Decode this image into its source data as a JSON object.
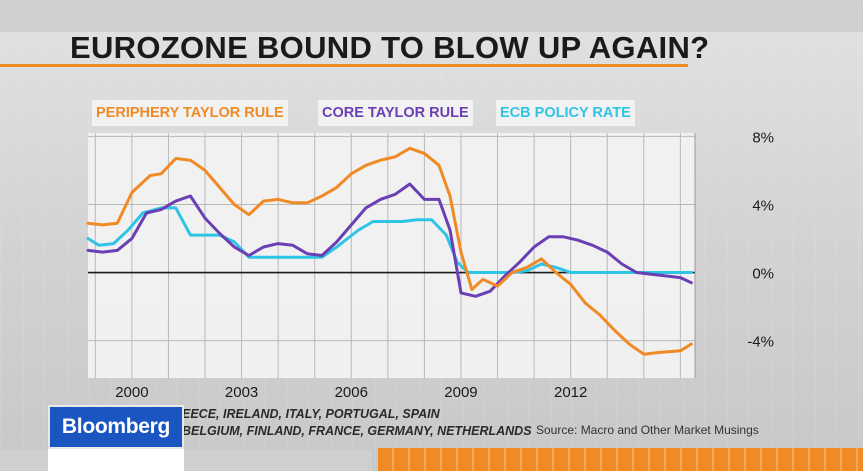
{
  "title": "EUROZONE BOUND TO BLOW UP AGAIN?",
  "brand": "Bloomberg",
  "source": "Source: Macro and Other Market Musings",
  "notes": [
    "EECE, IRELAND, ITALY, PORTUGAL, SPAIN",
    "BELGIUM, FINLAND, FRANCE, GERMANY, NETHERLANDS"
  ],
  "colors": {
    "periphery": "#f08a24",
    "core": "#6a3fb4",
    "ecb": "#2ec4e6",
    "accent": "#f08a24",
    "brand_bg": "#1a55c2"
  },
  "chart_data": {
    "type": "line",
    "x_label_ticks": [
      2000,
      2003,
      2006,
      2009,
      2012
    ],
    "y_ticks": [
      8,
      4,
      0,
      -4
    ],
    "y_tick_labels": [
      "8%",
      "4%",
      "0%",
      "-4%"
    ],
    "xlim": [
      1998.8,
      2015.4
    ],
    "ylim": [
      -6.2,
      8.2
    ],
    "grid": true,
    "legend_position": "top",
    "series": [
      {
        "name": "PERIPHERY TAYLOR RULE",
        "color": "#f08a24",
        "x": [
          1998.8,
          1999.2,
          1999.6,
          2000.0,
          2000.3,
          2000.5,
          2000.8,
          2001.2,
          2001.6,
          2002.0,
          2002.4,
          2002.8,
          2003.2,
          2003.6,
          2004.0,
          2004.4,
          2004.8,
          2005.2,
          2005.6,
          2006.0,
          2006.4,
          2006.8,
          2007.2,
          2007.6,
          2008.0,
          2008.4,
          2008.7,
          2009.0,
          2009.3,
          2009.6,
          2010.0,
          2010.4,
          2010.8,
          2011.2,
          2011.6,
          2012.0,
          2012.4,
          2012.8,
          2013.2,
          2013.6,
          2014.0,
          2014.4,
          2015.0,
          2015.3
        ],
        "values": [
          2.9,
          2.8,
          2.9,
          4.7,
          5.3,
          5.7,
          5.8,
          6.7,
          6.6,
          6.0,
          5.0,
          4.0,
          3.4,
          4.2,
          4.3,
          4.1,
          4.1,
          4.5,
          5.0,
          5.8,
          6.3,
          6.6,
          6.8,
          7.3,
          7.0,
          6.3,
          4.5,
          1.2,
          -1.0,
          -0.4,
          -0.8,
          0.0,
          0.3,
          0.8,
          0.0,
          -0.7,
          -1.8,
          -2.5,
          -3.4,
          -4.2,
          -4.8,
          -4.7,
          -4.6,
          -4.2
        ]
      },
      {
        "name": "CORE TAYLOR RULE",
        "color": "#6a3fb4",
        "x": [
          1998.8,
          1999.2,
          1999.6,
          2000.0,
          2000.4,
          2000.8,
          2001.2,
          2001.6,
          2002.0,
          2002.4,
          2002.8,
          2003.2,
          2003.6,
          2004.0,
          2004.4,
          2004.8,
          2005.2,
          2005.6,
          2006.0,
          2006.4,
          2006.8,
          2007.2,
          2007.6,
          2008.0,
          2008.4,
          2008.7,
          2009.0,
          2009.4,
          2009.8,
          2010.2,
          2010.6,
          2011.0,
          2011.4,
          2011.8,
          2012.2,
          2012.6,
          2013.0,
          2013.4,
          2013.8,
          2014.2,
          2014.6,
          2015.0,
          2015.3
        ],
        "values": [
          1.3,
          1.2,
          1.3,
          2.0,
          3.5,
          3.7,
          4.2,
          4.5,
          3.2,
          2.3,
          1.5,
          1.0,
          1.5,
          1.7,
          1.6,
          1.1,
          1.0,
          1.8,
          2.8,
          3.8,
          4.3,
          4.6,
          5.2,
          4.3,
          4.3,
          2.5,
          -1.2,
          -1.4,
          -1.1,
          -0.2,
          0.6,
          1.5,
          2.1,
          2.1,
          1.9,
          1.6,
          1.2,
          0.5,
          0.0,
          -0.1,
          -0.2,
          -0.3,
          -0.6
        ]
      },
      {
        "name": "ECB POLICY RATE",
        "color": "#2ec4e6",
        "x": [
          1998.8,
          1999.1,
          1999.5,
          1999.9,
          2000.3,
          2000.8,
          2001.2,
          2001.6,
          2002.0,
          2002.4,
          2002.8,
          2003.2,
          2003.6,
          2004.0,
          2004.4,
          2004.8,
          2005.2,
          2005.6,
          2005.9,
          2006.2,
          2006.6,
          2007.0,
          2007.4,
          2007.8,
          2008.2,
          2008.6,
          2008.9,
          2009.2,
          2009.6,
          2010.0,
          2010.4,
          2010.8,
          2011.2,
          2011.6,
          2012.0,
          2012.4,
          2012.8,
          2013.2,
          2013.6,
          2014.0,
          2014.4,
          2014.8,
          2015.0,
          2015.3
        ],
        "values": [
          2.0,
          1.6,
          1.7,
          2.5,
          3.5,
          3.8,
          3.8,
          2.2,
          2.2,
          2.2,
          1.8,
          0.9,
          0.9,
          0.9,
          0.9,
          0.9,
          0.9,
          1.5,
          2.0,
          2.5,
          3.0,
          3.0,
          3.0,
          3.1,
          3.1,
          2.2,
          0.6,
          0.0,
          0.0,
          0.0,
          0.0,
          0.1,
          0.5,
          0.3,
          0.0,
          0.0,
          0.0,
          0.0,
          0.0,
          0.0,
          0.0,
          0.0,
          0.0,
          0.0
        ]
      }
    ]
  }
}
